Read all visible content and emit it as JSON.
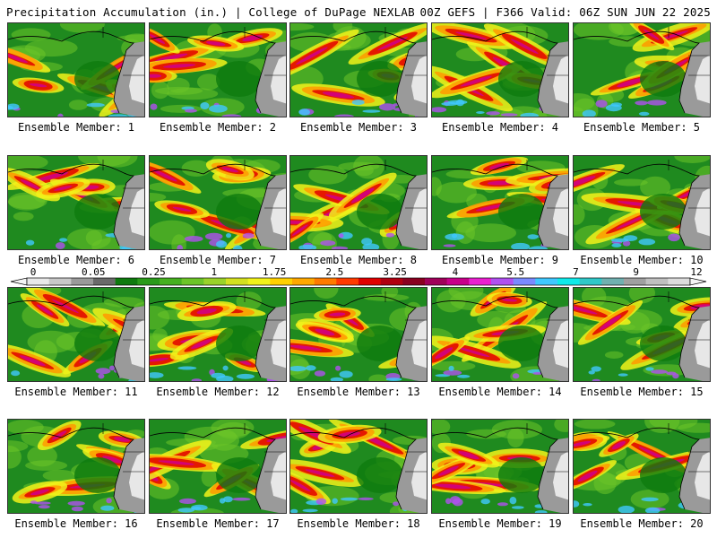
{
  "header": {
    "title": "Precipitation Accumulation (in.) | College of DuPage NEXLAB",
    "run_info": "00Z GEFS | F366 Valid: 06Z SUN JUN 22 2025"
  },
  "panels": [
    {
      "label": "Ensemble Member: 1"
    },
    {
      "label": "Ensemble Member: 2"
    },
    {
      "label": "Ensemble Member: 3"
    },
    {
      "label": "Ensemble Member: 4"
    },
    {
      "label": "Ensemble Member: 5"
    },
    {
      "label": "Ensemble Member: 6"
    },
    {
      "label": "Ensemble Member: 7"
    },
    {
      "label": "Ensemble Member: 8"
    },
    {
      "label": "Ensemble Member: 9"
    },
    {
      "label": "Ensemble Member: 10"
    },
    {
      "label": "Ensemble Member: 11"
    },
    {
      "label": "Ensemble Member: 12"
    },
    {
      "label": "Ensemble Member: 13"
    },
    {
      "label": "Ensemble Member: 14"
    },
    {
      "label": "Ensemble Member: 15"
    },
    {
      "label": "Ensemble Member: 16"
    },
    {
      "label": "Ensemble Member: 17"
    },
    {
      "label": "Ensemble Member: 18"
    },
    {
      "label": "Ensemble Member: 19"
    },
    {
      "label": "Ensemble Member: 20"
    }
  ],
  "legend": {
    "labels": [
      "0",
      "0.05",
      "0.25",
      "1",
      "1.75",
      "2.5",
      "3.25",
      "4",
      "5.5",
      "7",
      "9",
      "12"
    ],
    "colors": [
      "#e8e8e8",
      "#c8c8c8",
      "#9a9a9a",
      "#6a6a6a",
      "#0e7a0e",
      "#2a9a1a",
      "#46b020",
      "#6cc428",
      "#9ad22a",
      "#d4e020",
      "#f2f21a",
      "#ffd000",
      "#ffa800",
      "#ff7a00",
      "#ff3a00",
      "#e00000",
      "#b00010",
      "#8a0020",
      "#a0005a",
      "#c8008a",
      "#ea20d0",
      "#b050f0",
      "#7a8aff",
      "#40c8ff",
      "#10eaea",
      "#30c8c8",
      "#70b0b0",
      "#a0a0a0",
      "#c0c0c0",
      "#dcdcdc"
    ]
  },
  "map_colors": {
    "ocean_base": "#1f8a1f",
    "green_dark": "#0e7a0e",
    "green_light": "#6cc428",
    "yellow": "#f2f21a",
    "orange": "#ff9a00",
    "red": "#e00000",
    "magenta": "#d0008a",
    "purple": "#b050f0",
    "cyan": "#40c8ff",
    "gray_land": "#9a9a9a",
    "white_land": "#f0f0f0"
  }
}
